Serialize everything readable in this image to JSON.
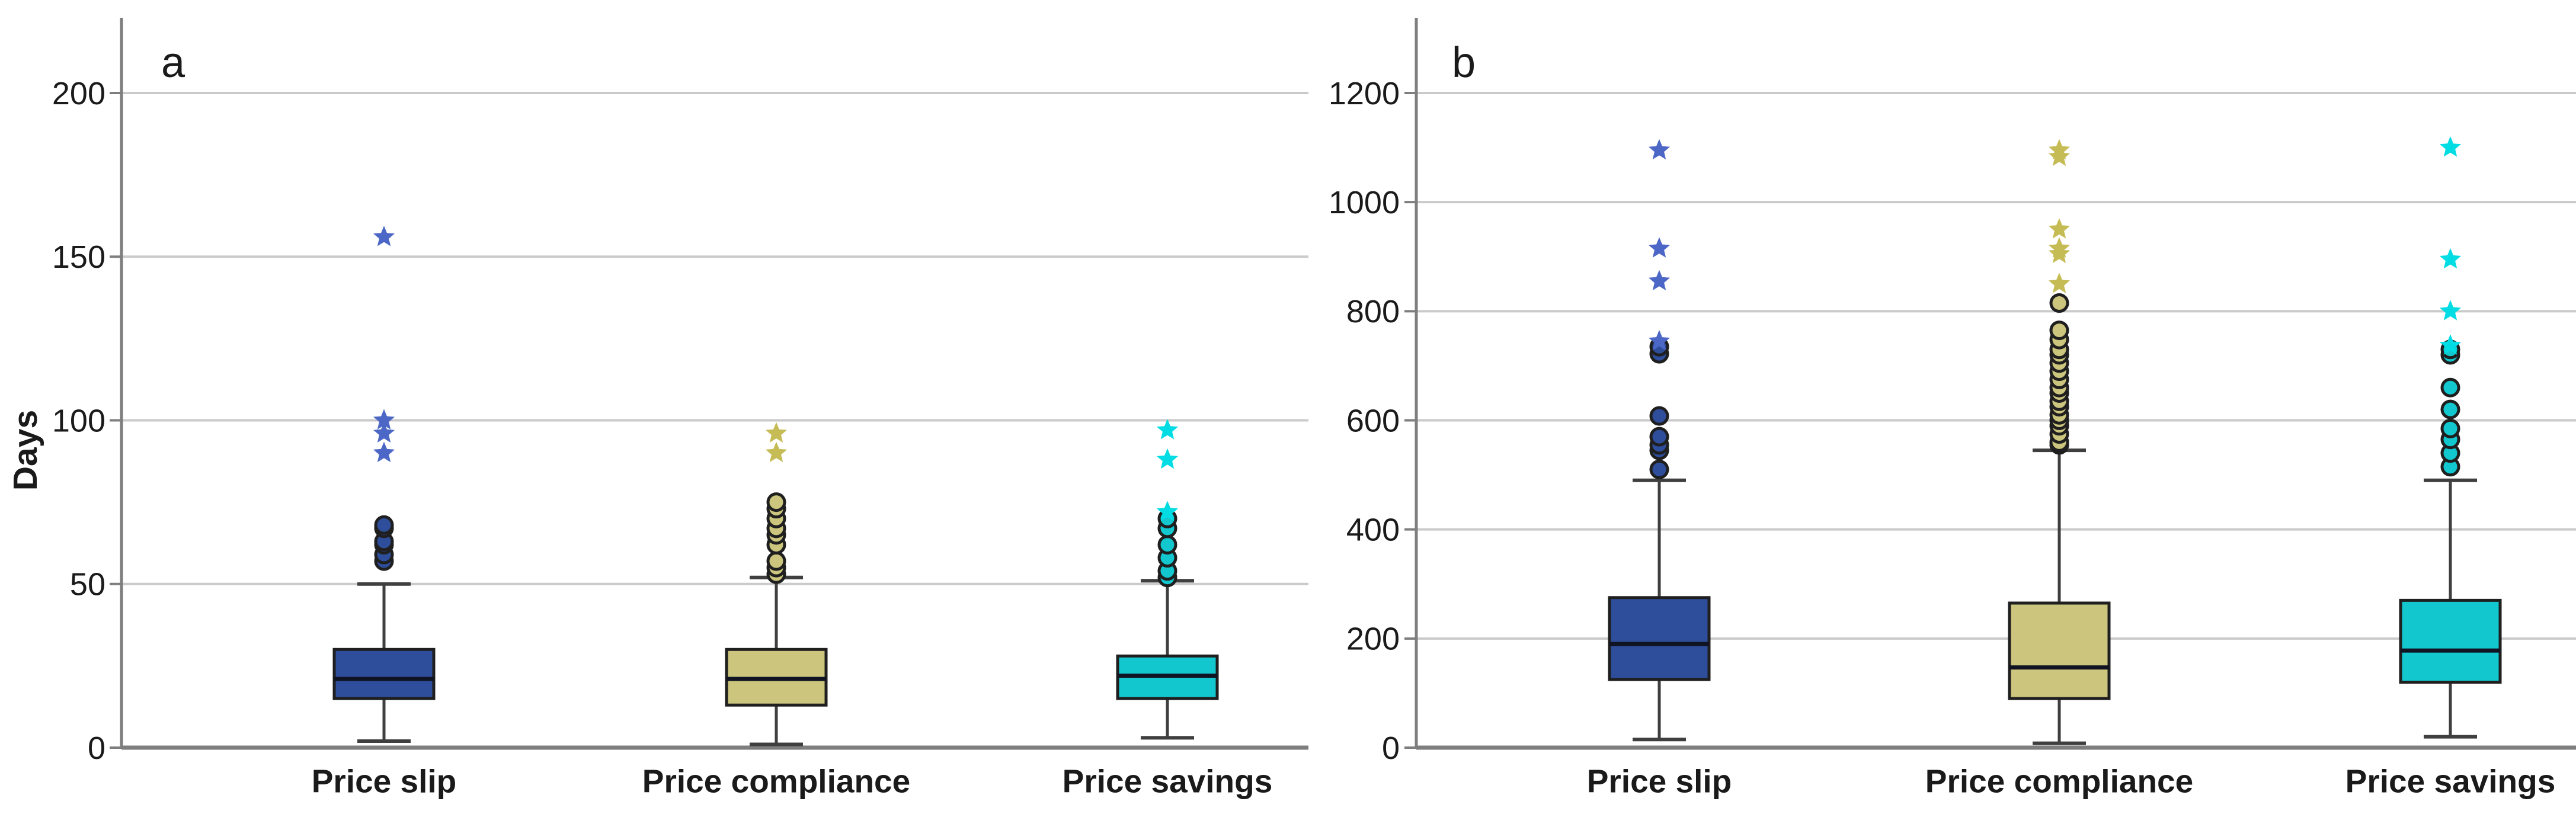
{
  "chart_data": {
    "type": "box",
    "title": "",
    "ylabel": "Days",
    "grid": "horizontal",
    "background": "#ffffff",
    "styles": {
      "gridline_color": "#cacaca",
      "axis_color": "#7e7e7e",
      "box_stroke": "#1f1f1f",
      "median_color": "#101322",
      "whisker_color": "#3f3f3f",
      "text_color": "#1a1a1a"
    },
    "panels": [
      {
        "label": "a",
        "ylabel": "Days",
        "show_y_title": true,
        "ylim": [
          0,
          200
        ],
        "yticks": [
          0,
          50,
          100,
          150,
          200
        ],
        "categories": [
          "Price slip",
          "Price compliance",
          "Price savings"
        ],
        "series": [
          {
            "category": "Price slip",
            "box_color": "#2e4d9b",
            "marker_color": "#4c67c5",
            "whisker_low": 2,
            "q1": 15,
            "median": 21,
            "q3": 30,
            "whisker_high": 50,
            "outlier_circles": [
              57,
              59,
              62,
              63,
              67,
              68
            ],
            "outlier_stars": [
              90,
              96,
              100,
              156
            ]
          },
          {
            "category": "Price compliance",
            "box_color": "#cbc57d",
            "marker_color": "#c5bc55",
            "whisker_low": 1,
            "q1": 13,
            "median": 21,
            "q3": 30,
            "whisker_high": 52,
            "outlier_circles": [
              53,
              55,
              57,
              62,
              65,
              67,
              70,
              73,
              75
            ],
            "outlier_stars": [
              90,
              96
            ]
          },
          {
            "category": "Price savings",
            "box_color": "#12c7ce",
            "marker_color": "#00dce3",
            "whisker_low": 3,
            "q1": 15,
            "median": 22,
            "q3": 28,
            "whisker_high": 51,
            "outlier_circles": [
              52,
              54,
              58,
              62,
              67,
              70
            ],
            "outlier_stars": [
              72,
              88,
              97
            ]
          }
        ]
      },
      {
        "label": "b",
        "ylabel": "",
        "show_y_title": false,
        "ylim": [
          0,
          1200
        ],
        "yticks": [
          0,
          200,
          400,
          600,
          800,
          1000,
          1200
        ],
        "categories": [
          "Price slip",
          "Price compliance",
          "Price savings"
        ],
        "series": [
          {
            "category": "Price slip",
            "box_color": "#2e4d9b",
            "marker_color": "#4c67c5",
            "whisker_low": 15,
            "q1": 125,
            "median": 190,
            "q3": 275,
            "whisker_high": 490,
            "outlier_circles": [
              510,
              545,
              555,
              570,
              608,
              722,
              735
            ],
            "outlier_stars": [
              745,
              855,
              915,
              1095
            ]
          },
          {
            "category": "Price compliance",
            "box_color": "#cbc57d",
            "marker_color": "#c5bc55",
            "whisker_low": 8,
            "q1": 90,
            "median": 147,
            "q3": 265,
            "whisker_high": 545,
            "outlier_circles": [
              555,
              560,
              575,
              590,
              600,
              610,
              625,
              635,
              650,
              660,
              675,
              690,
              705,
              720,
              730,
              748,
              765,
              815
            ],
            "outlier_stars": [
              850,
              905,
              915,
              950,
              1083,
              1095
            ]
          },
          {
            "category": "Price savings",
            "box_color": "#12c7ce",
            "marker_color": "#00dce3",
            "whisker_low": 20,
            "q1": 120,
            "median": 178,
            "q3": 270,
            "whisker_high": 490,
            "outlier_circles": [
              515,
              540,
              565,
              585,
              620,
              660,
              720,
              730
            ],
            "outlier_stars": [
              737,
              800,
              895,
              1100
            ]
          }
        ]
      }
    ]
  }
}
